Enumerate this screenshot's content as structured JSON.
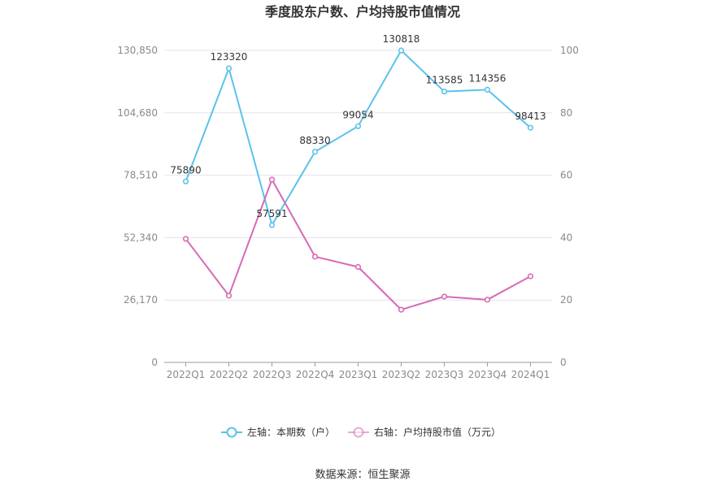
{
  "chart_data": {
    "type": "line",
    "title": "季度股东户数、户均持股市值情况",
    "categories": [
      "2022Q1",
      "2022Q2",
      "2022Q3",
      "2022Q4",
      "2023Q1",
      "2023Q2",
      "2023Q3",
      "2023Q4",
      "2024Q1"
    ],
    "series": [
      {
        "name": "左轴：本期数（户）",
        "axis": "left",
        "color": "#5bc2ec",
        "values": [
          75890,
          123320,
          57591,
          88330,
          99054,
          130818,
          113585,
          114356,
          98413
        ],
        "labels": [
          "75890",
          "123320",
          "57591",
          "88330",
          "99054",
          "130818",
          "113585",
          "114356",
          "98413"
        ]
      },
      {
        "name": "右轴：户均持股市值（万元）",
        "axis": "right",
        "color": "#d66ab3",
        "values": [
          39.6,
          21.4,
          58.6,
          33.9,
          30.6,
          16.9,
          21.1,
          20.1,
          27.6
        ]
      }
    ],
    "y_left": {
      "min": 0,
      "max": 130850,
      "ticks": [
        0,
        26170,
        52340,
        78510,
        104680,
        130850
      ],
      "tick_labels": [
        "0",
        "26,170",
        "52,340",
        "78,510",
        "104,680",
        "130,850"
      ]
    },
    "y_right": {
      "min": 0,
      "max": 100,
      "ticks": [
        0,
        20,
        40,
        60,
        80,
        100
      ],
      "tick_labels": [
        "0",
        "20",
        "40",
        "60",
        "80",
        "100"
      ]
    },
    "grid": true,
    "legend_position": "bottom"
  },
  "footer": {
    "source": "数据来源：恒生聚源"
  }
}
